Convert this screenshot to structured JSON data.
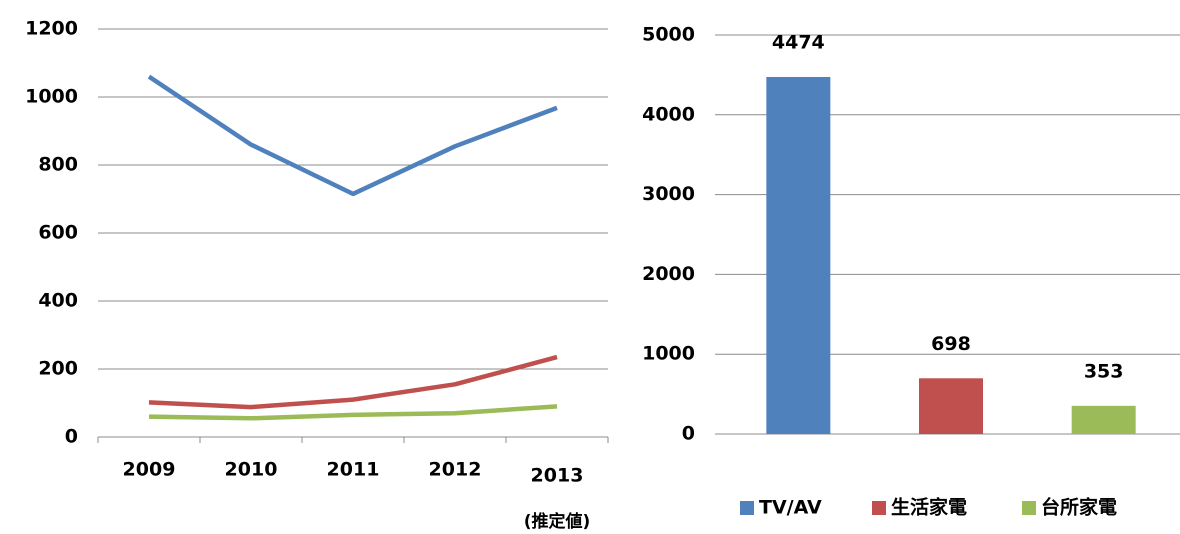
{
  "chart_data": [
    {
      "type": "line",
      "categories": [
        "2009",
        "2010",
        "2011",
        "2012",
        "2013"
      ],
      "annotation": "(推定値)",
      "series": [
        {
          "color": "#4f81bd",
          "values": [
            1060,
            860,
            715,
            855,
            968
          ]
        },
        {
          "color": "#c0504d",
          "values": [
            102,
            88,
            110,
            155,
            235
          ]
        },
        {
          "color": "#9bbb59",
          "values": [
            60,
            55,
            65,
            70,
            90
          ]
        }
      ],
      "ylim": [
        0,
        1200
      ],
      "yticks": [
        0,
        200,
        400,
        600,
        800,
        1000,
        1200
      ],
      "grid": true
    },
    {
      "type": "bar",
      "categories": [
        "TV/AV",
        "生活家電",
        "台所家電"
      ],
      "values": [
        4474,
        698,
        353
      ],
      "colors": [
        "#4f81bd",
        "#c0504d",
        "#9bbb59"
      ],
      "ylim": [
        0,
        5000
      ],
      "yticks": [
        0,
        1000,
        2000,
        3000,
        4000,
        5000
      ],
      "grid": true,
      "legend": "bottom"
    }
  ]
}
